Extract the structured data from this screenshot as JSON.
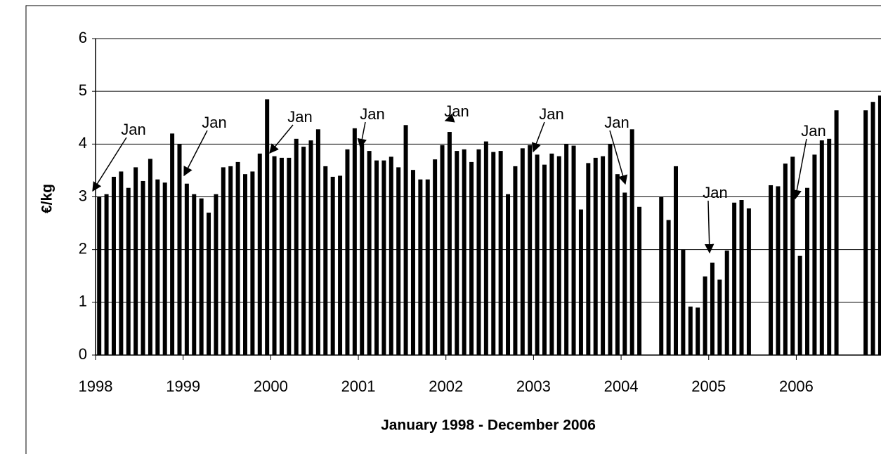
{
  "chart_data": {
    "type": "bar",
    "x_label": "January 1998 - December 2006",
    "y_label": "€/kg",
    "categories": [
      "1998",
      null,
      null,
      null,
      null,
      null,
      null,
      null,
      null,
      null,
      null,
      null,
      "1999",
      null,
      null,
      null,
      null,
      null,
      null,
      null,
      null,
      null,
      null,
      null,
      "2000",
      null,
      null,
      null,
      null,
      null,
      null,
      null,
      null,
      null,
      null,
      null,
      "2001",
      null,
      null,
      null,
      null,
      null,
      null,
      null,
      null,
      null,
      null,
      null,
      "2002",
      null,
      null,
      null,
      null,
      null,
      null,
      null,
      null,
      null,
      null,
      null,
      "2003",
      null,
      null,
      null,
      null,
      null,
      null,
      null,
      null,
      null,
      null,
      null,
      "2004",
      null,
      null,
      null,
      null,
      null,
      null,
      null,
      null,
      null,
      null,
      null,
      "2005",
      null,
      null,
      null,
      null,
      null,
      null,
      null,
      null,
      null,
      null,
      null,
      "2006",
      null,
      null,
      null,
      null,
      null,
      null,
      null,
      null,
      null,
      null,
      null
    ],
    "values": [
      3.0,
      3.05,
      3.38,
      3.48,
      3.17,
      3.56,
      3.3,
      3.72,
      3.33,
      3.27,
      4.2,
      4.0,
      3.25,
      3.05,
      2.97,
      2.7,
      3.05,
      3.56,
      3.58,
      3.66,
      3.43,
      3.48,
      3.82,
      4.85,
      3.77,
      3.74,
      3.74,
      4.1,
      3.95,
      4.07,
      4.28,
      3.58,
      3.38,
      3.4,
      3.9,
      4.3,
      4.0,
      3.87,
      3.69,
      3.69,
      3.76,
      3.56,
      4.36,
      3.51,
      3.33,
      3.33,
      3.71,
      3.98,
      4.23,
      3.87,
      3.9,
      3.66,
      3.9,
      4.05,
      3.85,
      3.87,
      3.05,
      3.58,
      3.92,
      3.98,
      3.8,
      3.61,
      3.82,
      3.77,
      4.0,
      3.97,
      2.76,
      3.64,
      3.74,
      3.77,
      4.0,
      3.43,
      3.08,
      4.28,
      2.81,
      null,
      null,
      3.0,
      2.56,
      3.58,
      2.0,
      0.92,
      0.9,
      1.49,
      1.75,
      1.43,
      1.98,
      2.89,
      2.94,
      2.78,
      null,
      null,
      3.22,
      3.2,
      3.63,
      3.76,
      1.88,
      3.17,
      3.8,
      4.07,
      4.1,
      4.64,
      null,
      null,
      null,
      4.64,
      4.8,
      4.92
    ],
    "color": "#000000",
    "ylim": [
      0,
      6
    ],
    "yticks": [
      0,
      1,
      2,
      3,
      4,
      5,
      6
    ],
    "grid": true,
    "annotations": [
      "Jan",
      "Jan",
      "Jan",
      "Jan",
      "Jan",
      "Jan",
      "Jan",
      "Jan",
      "Jan"
    ]
  }
}
